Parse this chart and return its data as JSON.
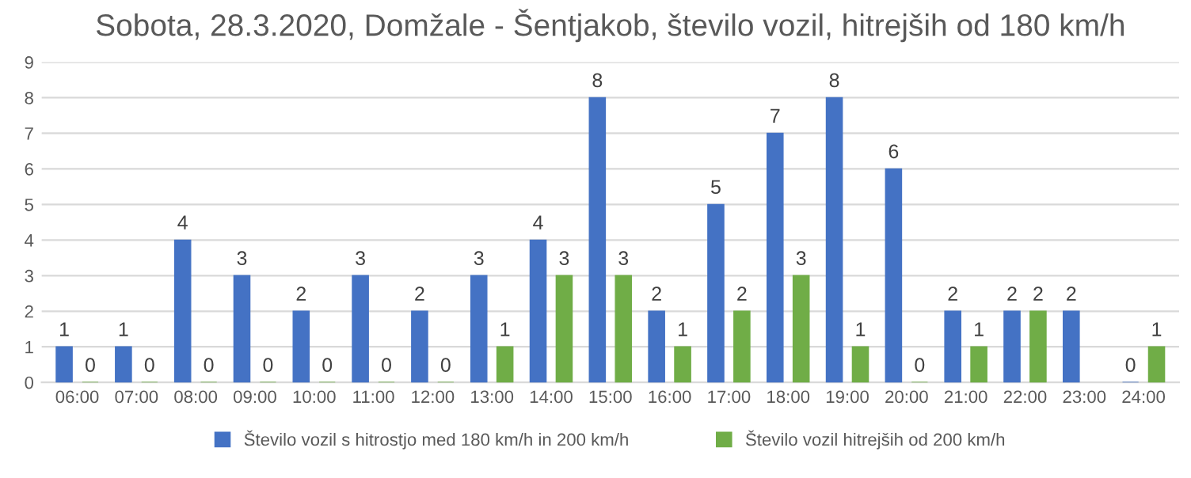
{
  "chart_data": {
    "type": "bar",
    "title": "Sobota, 28.3.2020, Domžale - Šentjakob, število vozil, hitrejših od 180 km/h",
    "categories": [
      "06:00",
      "07:00",
      "08:00",
      "09:00",
      "10:00",
      "11:00",
      "12:00",
      "13:00",
      "14:00",
      "15:00",
      "16:00",
      "17:00",
      "18:00",
      "19:00",
      "20:00",
      "21:00",
      "22:00",
      "23:00",
      "24:00"
    ],
    "series": [
      {
        "name": "Število vozil s hitrostjo med 180 km/h in 200 km/h",
        "color": "#4472c4",
        "values": [
          1,
          1,
          4,
          3,
          2,
          3,
          2,
          3,
          4,
          8,
          2,
          5,
          7,
          8,
          6,
          2,
          2,
          2,
          0
        ]
      },
      {
        "name": "Število vozil hitrejših od 200 km/h",
        "color": "#70ad47",
        "values": [
          0,
          0,
          0,
          0,
          0,
          0,
          0,
          1,
          3,
          3,
          1,
          2,
          3,
          1,
          0,
          1,
          2,
          null,
          1
        ]
      }
    ],
    "ylim": [
      0,
      9
    ],
    "yticks": [
      0,
      1,
      2,
      3,
      4,
      5,
      6,
      7,
      8,
      9
    ],
    "grid": "y",
    "legend": "bottom",
    "data_labels": true
  }
}
